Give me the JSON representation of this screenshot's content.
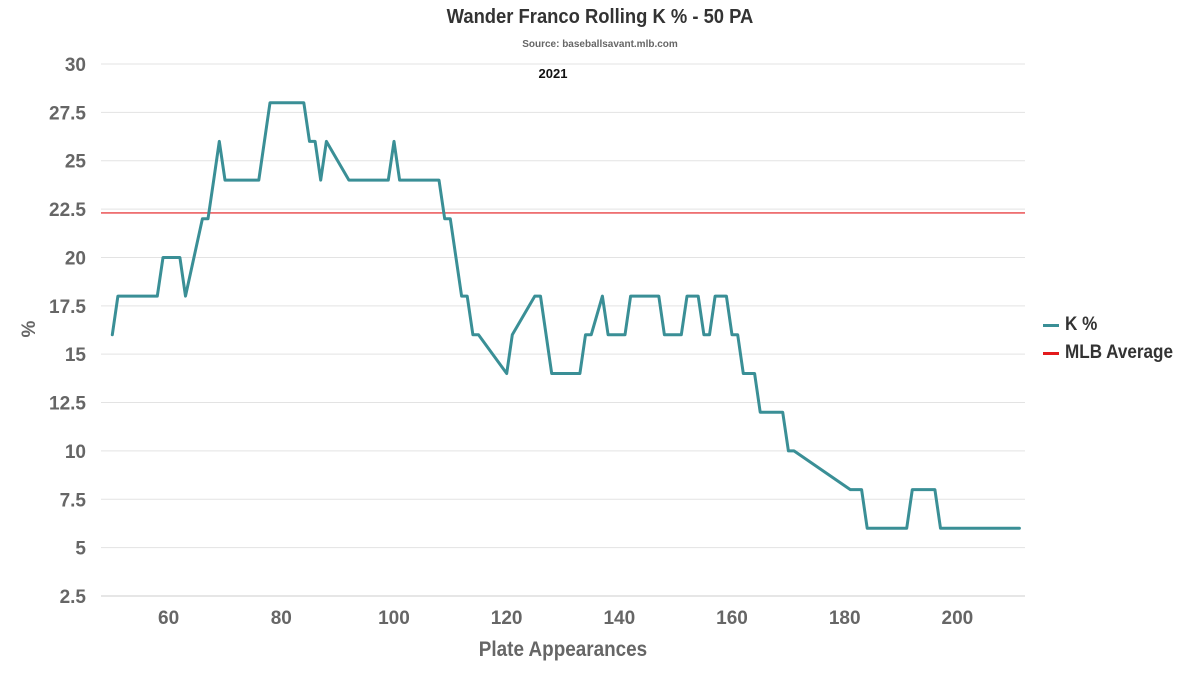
{
  "chart_data": {
    "type": "line",
    "title": "Wander Franco Rolling K % - 50 PA",
    "subtitle": "Source: baseballsavant.mlb.com",
    "annotation": "2021",
    "xlabel": "Plate Appearances",
    "ylabel": "%",
    "xlim": [
      48,
      212
    ],
    "ylim": [
      2.5,
      30
    ],
    "x_ticks": [
      60,
      80,
      100,
      120,
      140,
      160,
      180,
      200
    ],
    "y_ticks": [
      2.5,
      5,
      7.5,
      10,
      12.5,
      15,
      17.5,
      20,
      22.5,
      25,
      27.5,
      30
    ],
    "y_tick_labels": [
      "2.5",
      "5",
      "7.5",
      "10",
      "12.5",
      "15",
      "17.5",
      "20",
      "22.5",
      "25",
      "27.5",
      "30"
    ],
    "grid": true,
    "legend_position": "right",
    "series": [
      {
        "name": "K %",
        "color": "#3a8f96",
        "x": [
          50,
          51,
          52,
          58,
          59,
          61,
          62,
          63,
          66,
          67,
          68,
          69,
          70,
          76,
          78,
          84,
          85,
          86,
          87,
          88,
          92,
          99,
          100,
          101,
          108,
          109,
          110,
          112,
          113,
          114,
          115,
          120,
          121,
          125,
          126,
          128,
          129,
          133,
          134,
          135,
          137,
          138,
          141,
          142,
          147,
          148,
          151,
          152,
          154,
          155,
          156,
          157,
          159,
          160,
          161,
          162,
          164,
          165,
          166,
          167,
          169,
          170,
          171,
          181,
          182,
          183,
          184,
          185,
          191,
          192,
          193,
          196,
          197,
          198,
          204,
          205,
          206,
          211
        ],
        "y": [
          16,
          18,
          18,
          18,
          20,
          20,
          20,
          18,
          22,
          22,
          24,
          26,
          24,
          24,
          28,
          28,
          26,
          26,
          24,
          26,
          24,
          24,
          26,
          24,
          24,
          22,
          22,
          18,
          18,
          16,
          16,
          14,
          16,
          18,
          18,
          14,
          14,
          14,
          16,
          16,
          18,
          16,
          16,
          18,
          18,
          16,
          16,
          18,
          18,
          16,
          16,
          18,
          18,
          16,
          16,
          14,
          14,
          12,
          12,
          12,
          12,
          10,
          10,
          8,
          8,
          8,
          6,
          6,
          6,
          8,
          8,
          8,
          6,
          6,
          6,
          6,
          6,
          6
        ]
      },
      {
        "name": "MLB Average",
        "color": "#e31a1c",
        "type": "hline",
        "y": 22.3
      }
    ]
  }
}
